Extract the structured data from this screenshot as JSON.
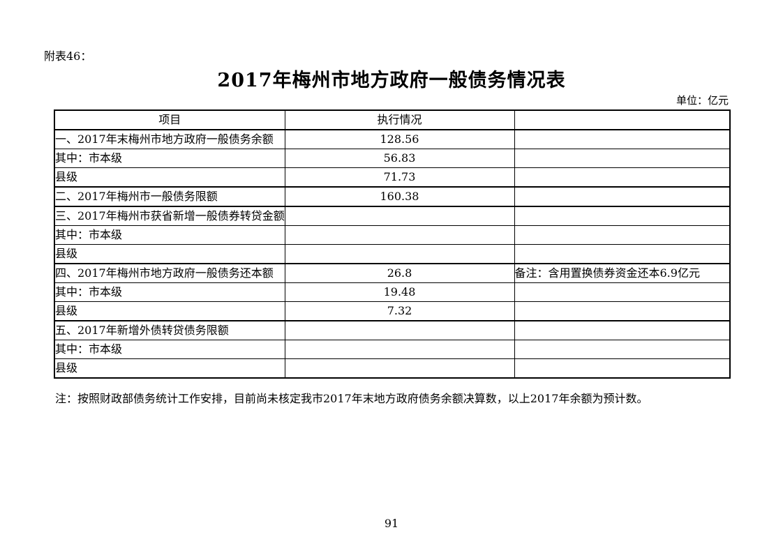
{
  "page": {
    "table_label": "附表46：",
    "title": "2017年梅州市地方政府一般债务情况表",
    "unit_label": "单位：亿元",
    "note": "注：按照财政部债务统计工作安排，目前尚未核定我市2017年末地方政府债务余额决算数，以上2017年余额为预计数。",
    "page_number": "91"
  },
  "table": {
    "headers": [
      "项目",
      "执行情况",
      ""
    ],
    "rows": [
      {
        "item": "一、2017年末梅州市地方政府一般债务余额",
        "value": "128.56",
        "remark": ""
      },
      {
        "item": "其中：市本级",
        "value": "56.83",
        "remark": ""
      },
      {
        "item": "县级",
        "value": "71.73",
        "remark": ""
      },
      {
        "item": "二、2017年梅州市一般债务限额",
        "value": "160.38",
        "remark": ""
      },
      {
        "item": "三、2017年梅州市获省新增一般债券转贷金额",
        "value": "",
        "remark": ""
      },
      {
        "item": "其中：市本级",
        "value": "",
        "remark": ""
      },
      {
        "item": "县级",
        "value": "",
        "remark": ""
      },
      {
        "item": "四、2017年梅州市地方政府一般债务还本额",
        "value": "26.8",
        "remark": "备注：含用置换债券资金还本6.9亿元"
      },
      {
        "item": "其中：市本级",
        "value": "19.48",
        "remark": ""
      },
      {
        "item": "县级",
        "value": "7.32",
        "remark": ""
      },
      {
        "item": "五、2017年新增外债转贷债务限额",
        "value": "",
        "remark": ""
      },
      {
        "item": "其中：市本级",
        "value": "",
        "remark": ""
      },
      {
        "item": "县级",
        "value": "",
        "remark": ""
      }
    ]
  }
}
